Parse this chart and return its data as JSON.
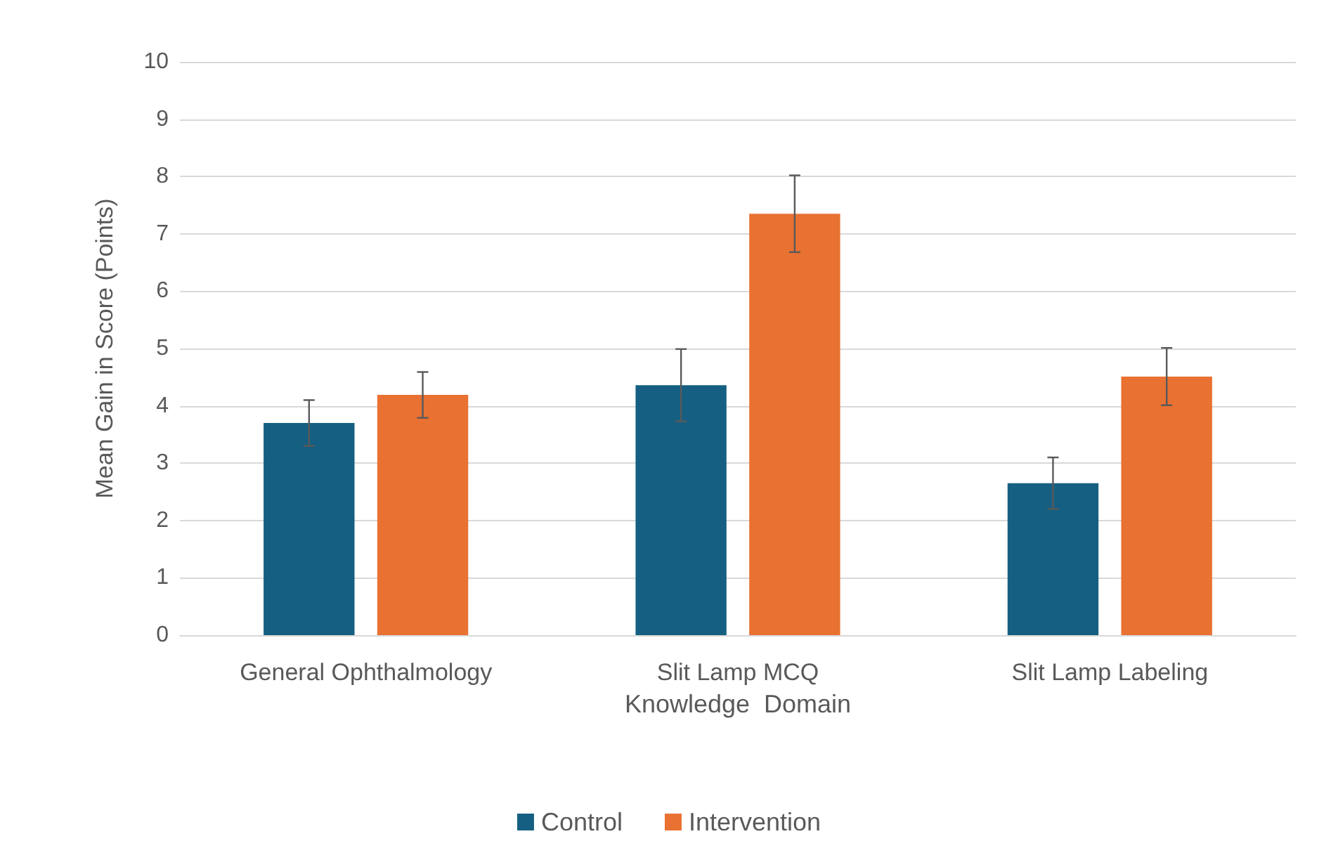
{
  "chart_data": {
    "type": "bar",
    "xlabel": "Knowledge  Domain",
    "ylabel": "Mean Gain in Score (Points)",
    "categories": [
      "General Ophthalmology",
      "Slit Lamp MCQ",
      "Slit Lamp Labeling"
    ],
    "series": [
      {
        "name": "Control",
        "color": "#156082",
        "values": [
          3.7,
          4.36,
          2.65
        ],
        "errors": [
          0.4,
          0.63,
          0.45
        ]
      },
      {
        "name": "Intervention",
        "color": "#e97132",
        "values": [
          4.19,
          7.35,
          4.51
        ],
        "errors": [
          0.4,
          0.67,
          0.5
        ]
      }
    ],
    "ylim": [
      0,
      10
    ],
    "yticks": [
      0,
      1,
      2,
      3,
      4,
      5,
      6,
      7,
      8,
      9,
      10
    ],
    "grid": "y",
    "legend": "bottom"
  }
}
